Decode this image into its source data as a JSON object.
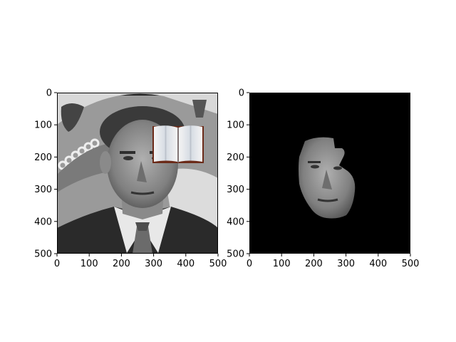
{
  "chart_data": [
    {
      "type": "image",
      "content": "grayscale photo of a man in a suit and tie in front of a seal backdrop, with an open book graphic pasted near the upper right of the head",
      "xlim": [
        0,
        500
      ],
      "ylim": [
        500,
        0
      ],
      "xticks": [
        "0",
        "100",
        "200",
        "300",
        "400",
        "500"
      ],
      "yticks": [
        "0",
        "100",
        "200",
        "300",
        "400",
        "500"
      ],
      "background": "#8a8a8a"
    },
    {
      "type": "image",
      "content": "segmented face region of the same man on a black background; the area covered by the book is missing",
      "xlim": [
        0,
        500
      ],
      "ylim": [
        500,
        0
      ],
      "xticks": [
        "0",
        "100",
        "200",
        "300",
        "400",
        "500"
      ],
      "yticks": [
        "0",
        "100",
        "200",
        "300",
        "400",
        "500"
      ],
      "background": "#000000"
    }
  ]
}
